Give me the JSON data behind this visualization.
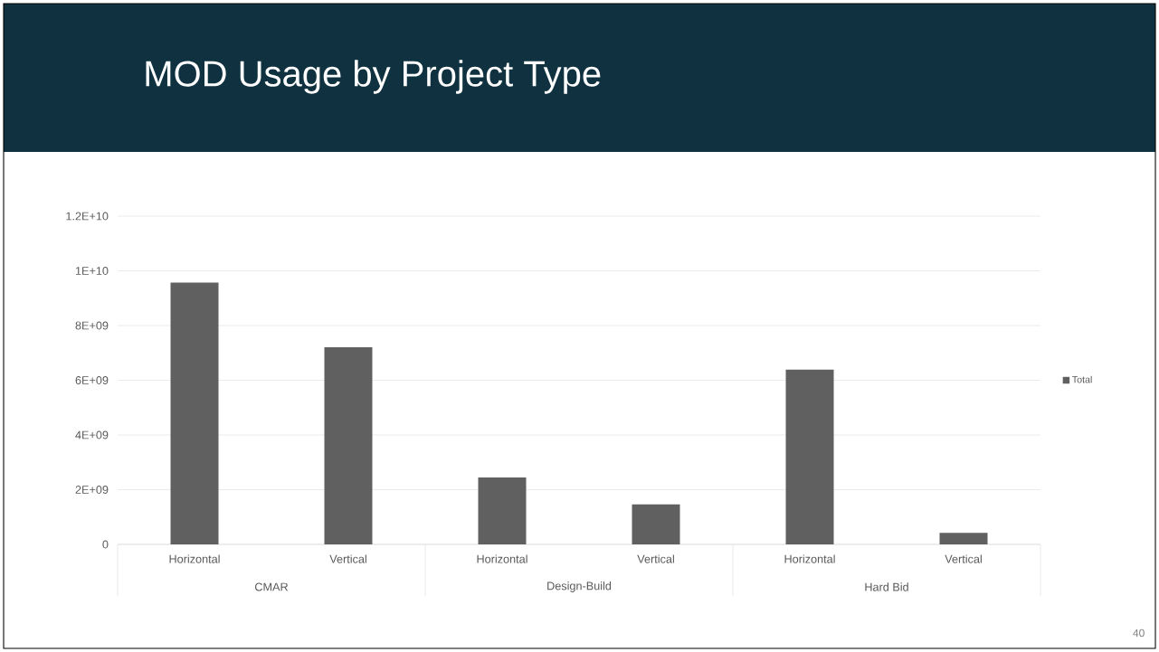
{
  "chart_data": {
    "type": "bar",
    "title": "MOD Usage by Project Type",
    "categories": [
      "Horizontal",
      "Vertical",
      "Horizontal",
      "Vertical",
      "Horizontal",
      "Vertical"
    ],
    "series": [
      {
        "name": "Total",
        "color": "#606060",
        "values": [
          9570000000.0,
          7210000000.0,
          2450000000.0,
          1460000000.0,
          6390000000.0,
          420000000.0
        ]
      }
    ],
    "ylim": [
      0,
      12000000000.0
    ],
    "yticks": [
      0,
      {
        "value": 2000000000.0,
        "label": "2E+09"
      },
      {
        "value": 4000000000.0,
        "label": "4E+09"
      },
      {
        "value": 6000000000.0,
        "label": "6E+09"
      },
      {
        "value": 8000000000.0,
        "label": "8E+09"
      },
      {
        "value": 10000000000.0,
        "label": "1E+10"
      },
      {
        "value": 12000000000.0,
        "label": "1.2E+10"
      }
    ],
    "grid": "y",
    "legend": "right",
    "annotations": [
      "CMAR",
      "Design-Build",
      "Hard Bid",
      "40"
    ]
  }
}
